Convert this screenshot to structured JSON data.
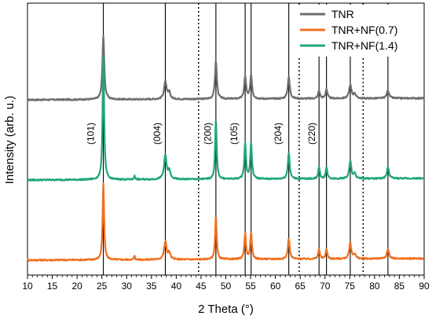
{
  "chart_data": {
    "type": "line",
    "xlabel": "2 Theta (°)",
    "ylabel": "Intensity (arb. u.)",
    "xlim": [
      10,
      90
    ],
    "xticks": [
      10,
      15,
      20,
      25,
      30,
      35,
      40,
      45,
      50,
      55,
      60,
      65,
      70,
      75,
      80,
      85,
      90
    ],
    "y_tick_labels_shown": false,
    "legend_position": "top-right",
    "series": [
      {
        "name": "TNR",
        "color": "#6e6e6e",
        "offset": 2.0,
        "peaks": [
          {
            "x": 25.3,
            "h": 0.8,
            "w": 0.22
          },
          {
            "x": 37.8,
            "h": 0.22,
            "w": 0.3
          },
          {
            "x": 38.6,
            "h": 0.08,
            "w": 0.25
          },
          {
            "x": 48.0,
            "h": 0.48,
            "w": 0.22
          },
          {
            "x": 53.9,
            "h": 0.28,
            "w": 0.22
          },
          {
            "x": 55.1,
            "h": 0.3,
            "w": 0.22
          },
          {
            "x": 62.7,
            "h": 0.27,
            "w": 0.25
          },
          {
            "x": 68.8,
            "h": 0.1,
            "w": 0.22
          },
          {
            "x": 70.3,
            "h": 0.12,
            "w": 0.22
          },
          {
            "x": 75.1,
            "h": 0.17,
            "w": 0.28
          },
          {
            "x": 76.0,
            "h": 0.06,
            "w": 0.25
          },
          {
            "x": 82.7,
            "h": 0.1,
            "w": 0.28
          }
        ]
      },
      {
        "name": "TNR+NF(0.7)",
        "color": "#f07020",
        "offset": 0.0,
        "peaks": [
          {
            "x": 25.3,
            "h": 0.95,
            "w": 0.18
          },
          {
            "x": 31.6,
            "h": 0.05,
            "w": 0.12
          },
          {
            "x": 37.8,
            "h": 0.22,
            "w": 0.3
          },
          {
            "x": 38.6,
            "h": 0.08,
            "w": 0.25
          },
          {
            "x": 48.0,
            "h": 0.55,
            "w": 0.18
          },
          {
            "x": 53.9,
            "h": 0.32,
            "w": 0.2
          },
          {
            "x": 55.1,
            "h": 0.32,
            "w": 0.2
          },
          {
            "x": 62.7,
            "h": 0.26,
            "w": 0.22
          },
          {
            "x": 68.8,
            "h": 0.12,
            "w": 0.2
          },
          {
            "x": 70.3,
            "h": 0.12,
            "w": 0.2
          },
          {
            "x": 75.1,
            "h": 0.2,
            "w": 0.25
          },
          {
            "x": 76.0,
            "h": 0.06,
            "w": 0.25
          },
          {
            "x": 82.7,
            "h": 0.12,
            "w": 0.25
          }
        ]
      },
      {
        "name": "TNR+NF(1.4)",
        "color": "#21a67a",
        "offset": 1.0,
        "peaks": [
          {
            "x": 25.3,
            "h": 1.55,
            "w": 0.18
          },
          {
            "x": 31.6,
            "h": 0.05,
            "w": 0.12
          },
          {
            "x": 37.8,
            "h": 0.3,
            "w": 0.3
          },
          {
            "x": 38.6,
            "h": 0.1,
            "w": 0.25
          },
          {
            "x": 48.0,
            "h": 0.75,
            "w": 0.18
          },
          {
            "x": 53.9,
            "h": 0.45,
            "w": 0.2
          },
          {
            "x": 55.1,
            "h": 0.45,
            "w": 0.2
          },
          {
            "x": 62.7,
            "h": 0.33,
            "w": 0.22
          },
          {
            "x": 68.8,
            "h": 0.14,
            "w": 0.2
          },
          {
            "x": 70.3,
            "h": 0.14,
            "w": 0.2
          },
          {
            "x": 75.1,
            "h": 0.22,
            "w": 0.25
          },
          {
            "x": 76.0,
            "h": 0.06,
            "w": 0.25
          },
          {
            "x": 82.7,
            "h": 0.14,
            "w": 0.25
          }
        ]
      }
    ],
    "solid_reference_lines": [
      25.3,
      37.8,
      48.0,
      53.9,
      55.1,
      62.7,
      68.8,
      70.3,
      75.1,
      82.7
    ],
    "dotted_reference_lines": [
      44.5,
      64.8,
      77.7
    ],
    "peak_labels": [
      {
        "text": "(101)",
        "x": 23.4
      },
      {
        "text": "(004)",
        "x": 36.8
      },
      {
        "text": "(200)",
        "x": 47.0
      },
      {
        "text": "(105)",
        "x": 52.3
      },
      {
        "text": "(204)",
        "x": 61.2
      },
      {
        "text": "(220)",
        "x": 68.0
      }
    ]
  }
}
